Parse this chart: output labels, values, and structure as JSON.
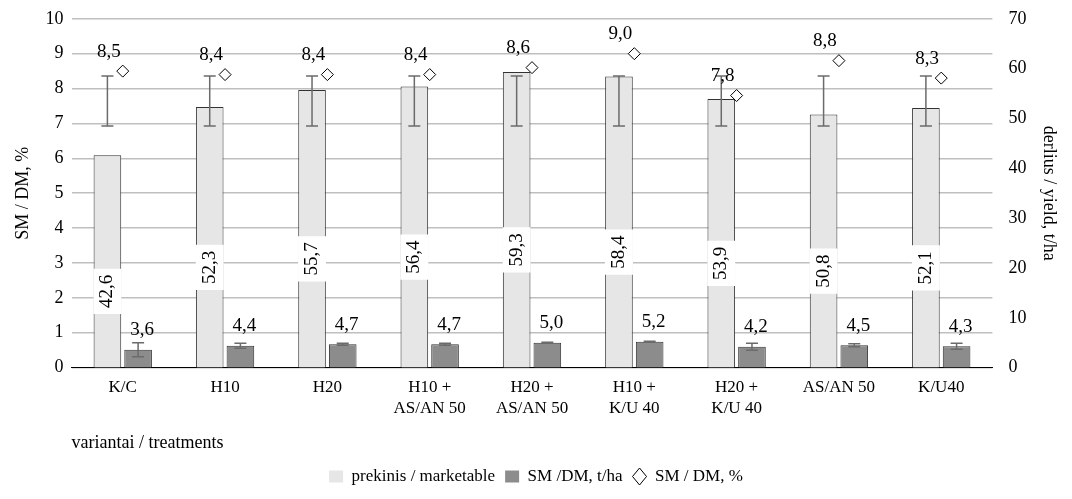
{
  "chart_data": {
    "type": "bar",
    "ylabel": "SM / DM, %",
    "y2label": "derlius / yield, t/ha",
    "xlabel": "variantai / treatments",
    "categories": [
      "K/C",
      "H10",
      "H20",
      "H10 + AS/AN 50",
      "H20 + AS/AN 50",
      "H10 + K/U 40",
      "H20 + K/U 40",
      "AS/AN 50",
      "K/U40"
    ],
    "series": [
      {
        "name": "prekinis / marketable",
        "axis": "y2",
        "color": "#e6e6e6",
        "values": [
          42.6,
          52.3,
          55.7,
          56.4,
          59.3,
          58.4,
          53.9,
          50.8,
          52.1
        ],
        "value_labels": [
          "42,6",
          "52,3",
          "55,7",
          "56,4",
          "59,3",
          "58,4",
          "53,9",
          "50,8",
          "52,1"
        ],
        "errors": [
          [
            48.5,
            58.5
          ],
          [
            48.5,
            58.5
          ],
          [
            48.5,
            58.5
          ],
          [
            48.5,
            58.5
          ],
          [
            48.5,
            58.5
          ],
          [
            48.5,
            58.5
          ],
          [
            48.5,
            58.5
          ],
          [
            48.5,
            58.5
          ],
          [
            48.5,
            58.5
          ]
        ]
      },
      {
        "name": "SM /DM, t/ha",
        "axis": "y2",
        "color": "#8c8c8c",
        "values": [
          3.6,
          4.4,
          4.7,
          4.7,
          5.0,
          5.2,
          4.2,
          4.5,
          4.3
        ],
        "value_labels": [
          "3,6",
          "4,4",
          "4,7",
          "4,7",
          "5,0",
          "5,2",
          "4,2",
          "4,5",
          "4,3"
        ],
        "errors": [
          1.4,
          0.5,
          0.2,
          0.2,
          0.1,
          0.1,
          0.7,
          0.3,
          0.6
        ]
      },
      {
        "name": "SM / DM, %",
        "type": "scatter",
        "axis": "y",
        "color": "#ffffff",
        "marker": "diamond",
        "values": [
          8.5,
          8.4,
          8.4,
          8.4,
          8.6,
          9.0,
          7.8,
          8.8,
          8.3
        ],
        "value_labels": [
          "8,5",
          "8,4",
          "8,4",
          "8,4",
          "8,6",
          "9,0",
          "7,8",
          "8,8",
          "8,3"
        ]
      }
    ],
    "ylim": [
      0,
      10
    ],
    "yticks": [
      0,
      1,
      2,
      3,
      4,
      5,
      6,
      7,
      8,
      9,
      10
    ],
    "y2lim": [
      0,
      70
    ],
    "y2ticks": [
      0,
      10,
      20,
      30,
      40,
      50,
      60,
      70
    ],
    "grid": "y",
    "legend": "bottom"
  }
}
